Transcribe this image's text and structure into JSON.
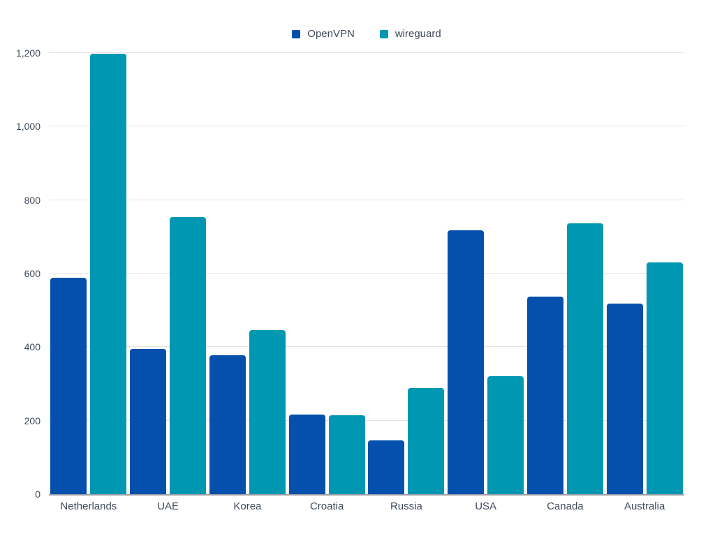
{
  "chart_data": {
    "type": "bar",
    "title": "",
    "xlabel": "",
    "ylabel": "",
    "categories": [
      "Netherlands",
      "UAE",
      "Korea",
      "Croatia",
      "Russia",
      "USA",
      "Canada",
      "Australia"
    ],
    "series": [
      {
        "name": "OpenVPN",
        "color": "#0450ac",
        "values": [
          588,
          395,
          377,
          216,
          146,
          718,
          538,
          519
        ]
      },
      {
        "name": "wireguard",
        "color": "#0097b2",
        "values": [
          1198,
          753,
          446,
          214,
          288,
          321,
          736,
          631
        ]
      }
    ],
    "ylim": [
      0,
      1200
    ],
    "yticks": [
      {
        "value": 0,
        "label": "0"
      },
      {
        "value": 200,
        "label": "200"
      },
      {
        "value": 400,
        "label": "400"
      },
      {
        "value": 600,
        "label": "600"
      },
      {
        "value": 800,
        "label": "800"
      },
      {
        "value": 1000,
        "label": "1,000"
      },
      {
        "value": 1200,
        "label": "1,200"
      }
    ],
    "grid": "horizontal",
    "legend_position": "top-center",
    "background": "#ffffff"
  },
  "colors": {
    "grid": "#e4e4e4",
    "axis_line": "#9b9fa4",
    "tick_text": "#3e4a59"
  }
}
